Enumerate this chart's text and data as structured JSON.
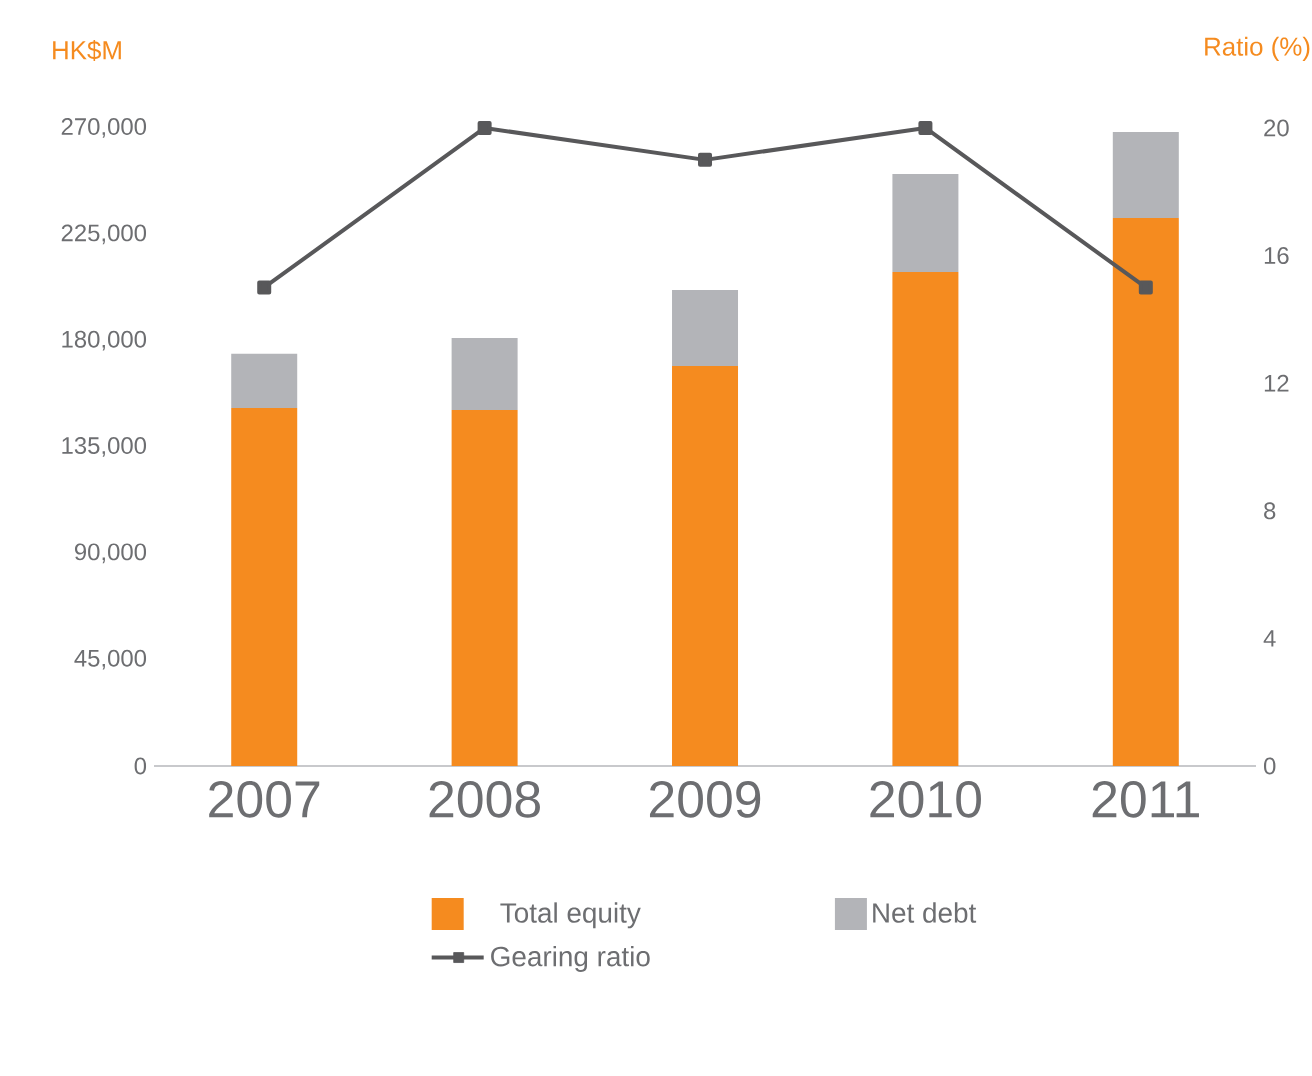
{
  "chart_data": {
    "type": "bar",
    "stacked": true,
    "ylabel": "HK$M",
    "y2label": "Ratio (%)",
    "categories": [
      "2007",
      "2008",
      "2009",
      "2010",
      "2011"
    ],
    "series": [
      {
        "name": "Total equity",
        "color": "#f58b1f",
        "values": [
          151500,
          150700,
          169300,
          209000,
          231900
        ]
      },
      {
        "name": "Net debt",
        "color": "#b3b4b8",
        "values": [
          22900,
          30400,
          32100,
          41500,
          36400
        ]
      },
      {
        "name": "Gearing ratio",
        "type": "line",
        "axis": "y2",
        "color": "#58585a",
        "marker": "square",
        "line_style": "solid",
        "values": [
          15,
          20,
          19,
          20,
          15
        ]
      }
    ],
    "ylim": [
      0,
      270000
    ],
    "yticks": [
      {
        "value": 0,
        "label": "0"
      },
      {
        "value": 45000,
        "label": "45,000"
      },
      {
        "value": 90000,
        "label": "90,000"
      },
      {
        "value": 135000,
        "label": "135,000"
      },
      {
        "value": 180000,
        "label": "180,000"
      },
      {
        "value": 225000,
        "label": "225,000"
      },
      {
        "value": 270000,
        "label": "270,000"
      }
    ],
    "y2lim": [
      0,
      20
    ],
    "y2ticks": [
      0,
      4,
      8,
      12,
      16,
      20
    ],
    "grid": false,
    "legend": "bottom"
  }
}
